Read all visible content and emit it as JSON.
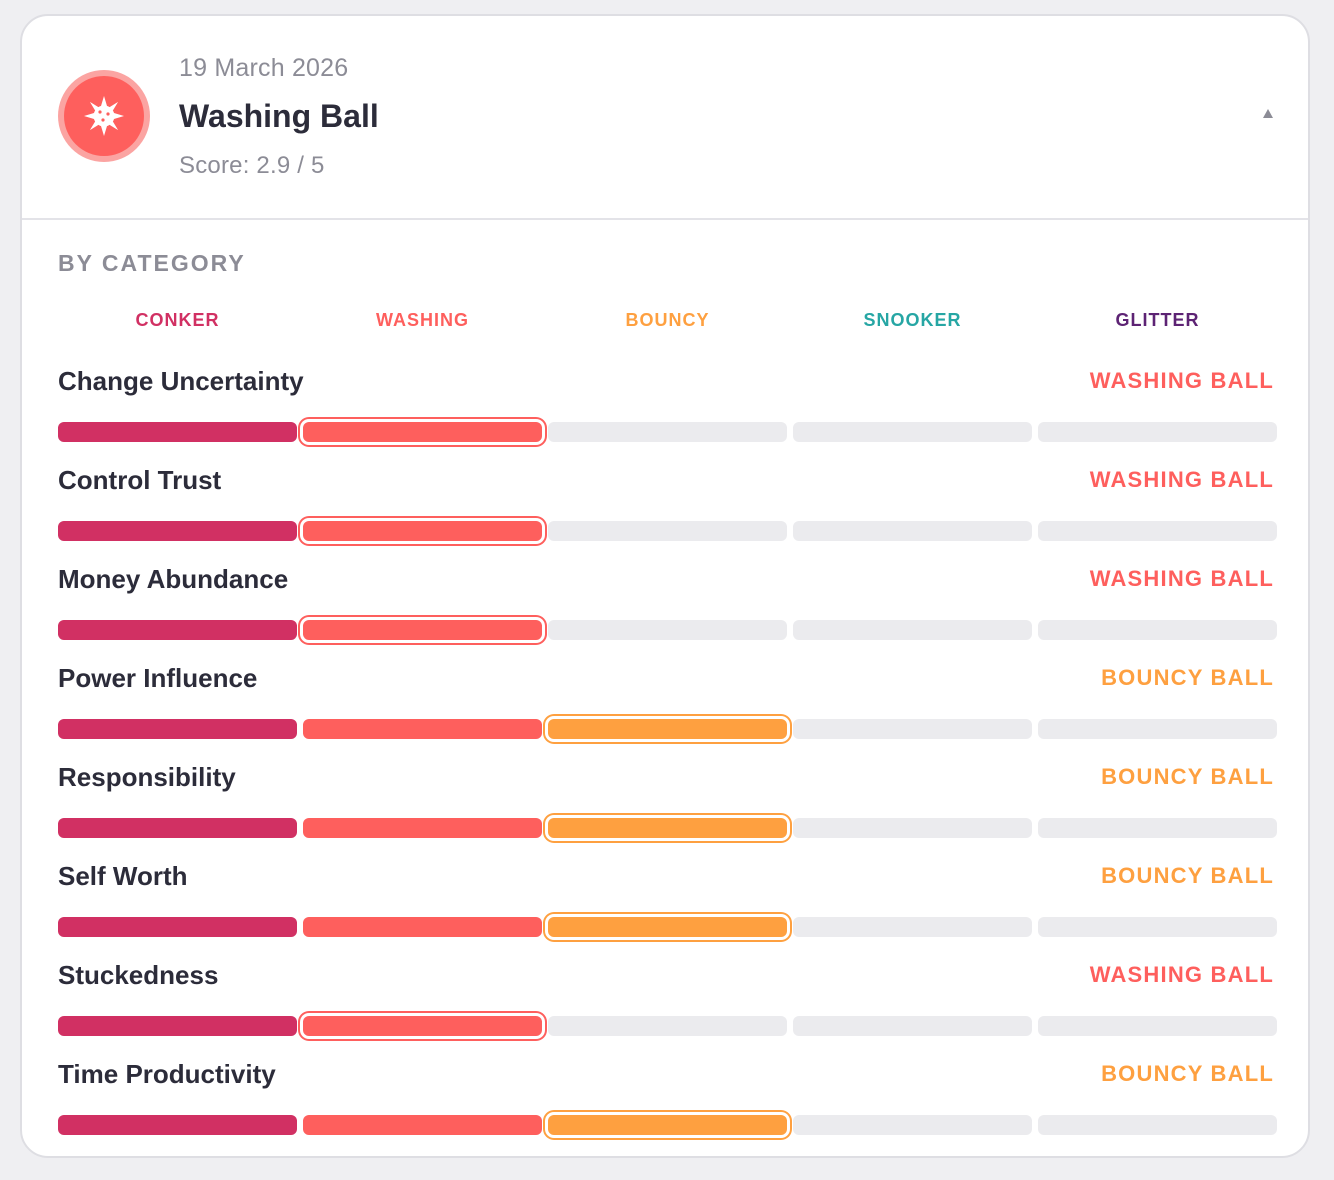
{
  "header": {
    "date": "19 March 2026",
    "title": "Washing Ball",
    "score": "Score: 2.9 / 5",
    "icon": "washing-ball-icon",
    "toggle_icon": "chevron-up-icon"
  },
  "section": {
    "heading": "BY CATEGORY"
  },
  "categories": [
    {
      "label": "CONKER",
      "color": "#d13063"
    },
    {
      "label": "WASHING",
      "color": "#fe5f5d"
    },
    {
      "label": "BOUNCY",
      "color": "#fea040"
    },
    {
      "label": "SNOOKER",
      "color": "#26a6a4"
    },
    {
      "label": "GLITTER",
      "color": "#5d2374"
    }
  ],
  "empty_color": "#ebebee",
  "rows": [
    {
      "label": "Change Uncertainty",
      "result": "WASHING BALL",
      "level": 2
    },
    {
      "label": "Control Trust",
      "result": "WASHING BALL",
      "level": 2
    },
    {
      "label": "Money Abundance",
      "result": "WASHING BALL",
      "level": 2
    },
    {
      "label": "Power Influence",
      "result": "BOUNCY BALL",
      "level": 3
    },
    {
      "label": "Responsibility",
      "result": "BOUNCY BALL",
      "level": 3
    },
    {
      "label": "Self Worth",
      "result": "BOUNCY BALL",
      "level": 3
    },
    {
      "label": "Stuckedness",
      "result": "WASHING BALL",
      "level": 2
    },
    {
      "label": "Time Productivity",
      "result": "BOUNCY BALL",
      "level": 3
    }
  ]
}
